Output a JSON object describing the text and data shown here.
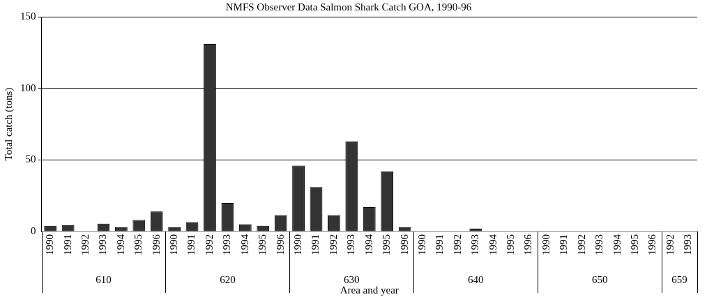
{
  "chart_data": {
    "type": "bar",
    "title": "NMFS Observer Data Salmon Shark Catch GOA, 1990-96",
    "xlabel": "Area and year",
    "ylabel": "Total catch (tons)",
    "categories": [
      "1990",
      "1991",
      "1992",
      "1993",
      "1994",
      "1995",
      "1996",
      "1990",
      "1991",
      "1992",
      "1993",
      "1994",
      "1995",
      "1996",
      "1990",
      "1991",
      "1992",
      "1993",
      "1994",
      "1995",
      "1996",
      "1990",
      "1991",
      "1992",
      "1993",
      "1994",
      "1995",
      "1996",
      "1990",
      "1991",
      "1992",
      "1993",
      "1994",
      "1995",
      "1996",
      "1992",
      "1993"
    ],
    "values": [
      4,
      4.5,
      0,
      5.5,
      3,
      8,
      14,
      3,
      6.5,
      131,
      20,
      5,
      4,
      11.5,
      46,
      31,
      11.5,
      63,
      17,
      42,
      3,
      0,
      0,
      0,
      2,
      0,
      0,
      0,
      0,
      0,
      0,
      0,
      0,
      0,
      0,
      0,
      0
    ],
    "color": "#333333",
    "ylim": [
      0,
      150
    ],
    "yticks": [
      0,
      50,
      100,
      150
    ],
    "grid": "y",
    "legend": false,
    "annotations": [
      "610",
      "620",
      "630",
      "640",
      "650",
      "659"
    ]
  }
}
